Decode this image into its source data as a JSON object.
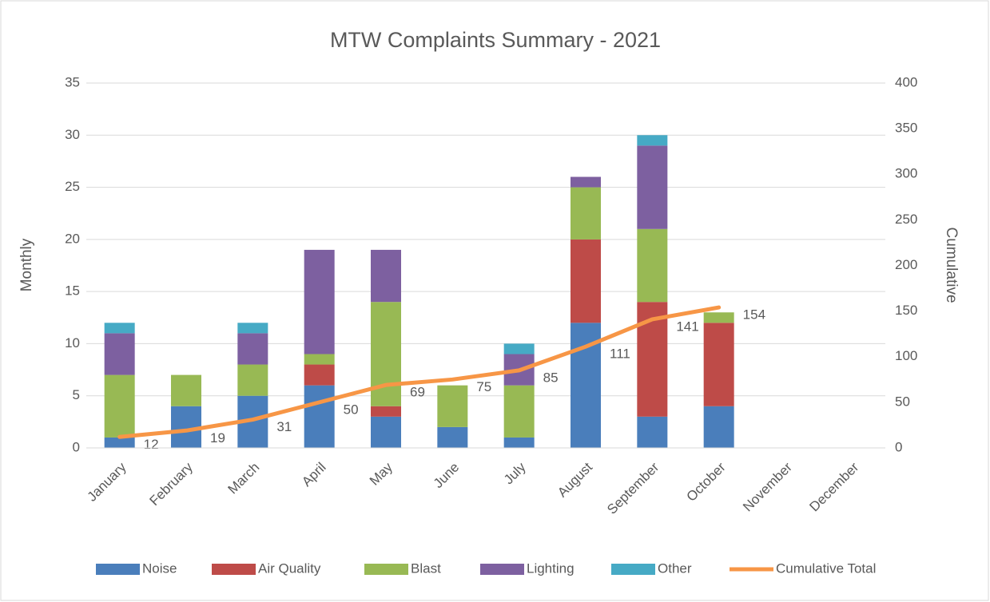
{
  "chart_data": {
    "type": "bar",
    "stacked": true,
    "title": "MTW Complaints Summary - 2021",
    "y_label": "Monthly",
    "y2_label": "Cumulative",
    "categories": [
      "January",
      "February",
      "March",
      "April",
      "May",
      "June",
      "July",
      "August",
      "September",
      "October",
      "November",
      "December"
    ],
    "series": [
      {
        "name": "Noise",
        "color": "#4a7ebb",
        "values": [
          1,
          4,
          5,
          6,
          3,
          2,
          1,
          12,
          3,
          4,
          null,
          null
        ]
      },
      {
        "name": "Air Quality",
        "color": "#be4b48",
        "values": [
          0,
          0,
          0,
          2,
          1,
          0,
          0,
          8,
          11,
          8,
          null,
          null
        ]
      },
      {
        "name": "Blast",
        "color": "#98b954",
        "values": [
          6,
          3,
          3,
          1,
          10,
          4,
          5,
          5,
          7,
          1,
          null,
          null
        ]
      },
      {
        "name": "Lighting",
        "color": "#7d60a0",
        "values": [
          4,
          0,
          3,
          10,
          5,
          0,
          3,
          1,
          8,
          0,
          null,
          null
        ]
      },
      {
        "name": "Other",
        "color": "#46aac5",
        "values": [
          1,
          0,
          1,
          0,
          0,
          0,
          1,
          0,
          1,
          0,
          null,
          null
        ]
      },
      {
        "name": "Cumulative Total",
        "type": "line",
        "axis": "y2",
        "color": "#f79646",
        "values": [
          12,
          19,
          31,
          50,
          69,
          75,
          85,
          111,
          141,
          154,
          null,
          null
        ]
      }
    ],
    "ylim": [
      0,
      35
    ],
    "yticks": [
      0,
      5,
      10,
      15,
      20,
      25,
      30,
      35
    ],
    "y2lim": [
      0,
      400
    ],
    "y2ticks": [
      0,
      50,
      100,
      150,
      200,
      250,
      300,
      350,
      400
    ],
    "grid": true,
    "legend": "bottom"
  }
}
